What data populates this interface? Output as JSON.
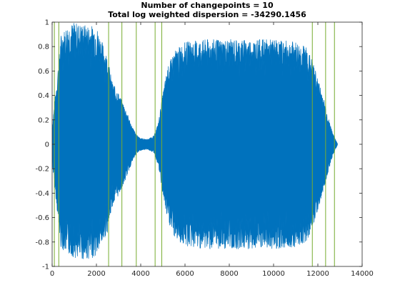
{
  "chart_data": {
    "type": "line",
    "title_lines": [
      "Number of changepoints = 10",
      "Total log weighted dispersion = -34290.1456"
    ],
    "xlabel": "",
    "ylabel": "",
    "xlim": [
      0,
      14000
    ],
    "ylim": [
      -1,
      1
    ],
    "x_ticks": [
      0,
      2000,
      4000,
      6000,
      8000,
      10000,
      12000,
      14000
    ],
    "x_tick_labels": [
      "0",
      "2000",
      "4000",
      "6000",
      "8000",
      "10000",
      "12000",
      "14000"
    ],
    "y_ticks": [
      -1,
      -0.8,
      -0.6,
      -0.4,
      -0.2,
      0,
      0.2,
      0.4,
      0.6,
      0.8,
      1
    ],
    "y_tick_labels": [
      "-1",
      "-0.8",
      "-0.6",
      "-0.4",
      "-0.2",
      "0",
      "0.2",
      "0.4",
      "0.6",
      "0.8",
      "1"
    ],
    "grid": false,
    "legend": "none",
    "series": [
      {
        "color": "#0072BD",
        "x_range": [
          0,
          12900
        ],
        "envelope": {
          "x": [
            0,
            200,
            400,
            700,
            1000,
            1500,
            2000,
            2500,
            2700,
            3000,
            3300,
            3600,
            3800,
            4000,
            4300,
            4600,
            4800,
            5000,
            5200,
            5500,
            6000,
            7000,
            8000,
            9000,
            10000,
            11000,
            11500,
            11800,
            12200,
            12500,
            12700,
            12900
          ],
          "upper": [
            0.15,
            0.5,
            0.9,
            0.98,
            1.0,
            0.98,
            0.97,
            0.72,
            0.52,
            0.42,
            0.3,
            0.15,
            0.08,
            0.05,
            0.04,
            0.07,
            0.18,
            0.42,
            0.62,
            0.76,
            0.84,
            0.86,
            0.86,
            0.86,
            0.86,
            0.84,
            0.8,
            0.66,
            0.42,
            0.2,
            0.08,
            0.0
          ],
          "lower": [
            -0.15,
            -0.5,
            -0.85,
            -0.9,
            -0.93,
            -0.95,
            -0.92,
            -0.72,
            -0.52,
            -0.42,
            -0.3,
            -0.15,
            -0.08,
            -0.05,
            -0.04,
            -0.07,
            -0.18,
            -0.42,
            -0.62,
            -0.76,
            -0.84,
            -0.86,
            -0.86,
            -0.86,
            -0.86,
            -0.84,
            -0.8,
            -0.66,
            -0.42,
            -0.2,
            -0.08,
            0.0
          ]
        }
      }
    ],
    "changepoints": {
      "color": "#77AC30",
      "x": [
        100,
        300,
        2550,
        3150,
        3800,
        4650,
        4950,
        11750,
        12350,
        12750
      ]
    }
  }
}
